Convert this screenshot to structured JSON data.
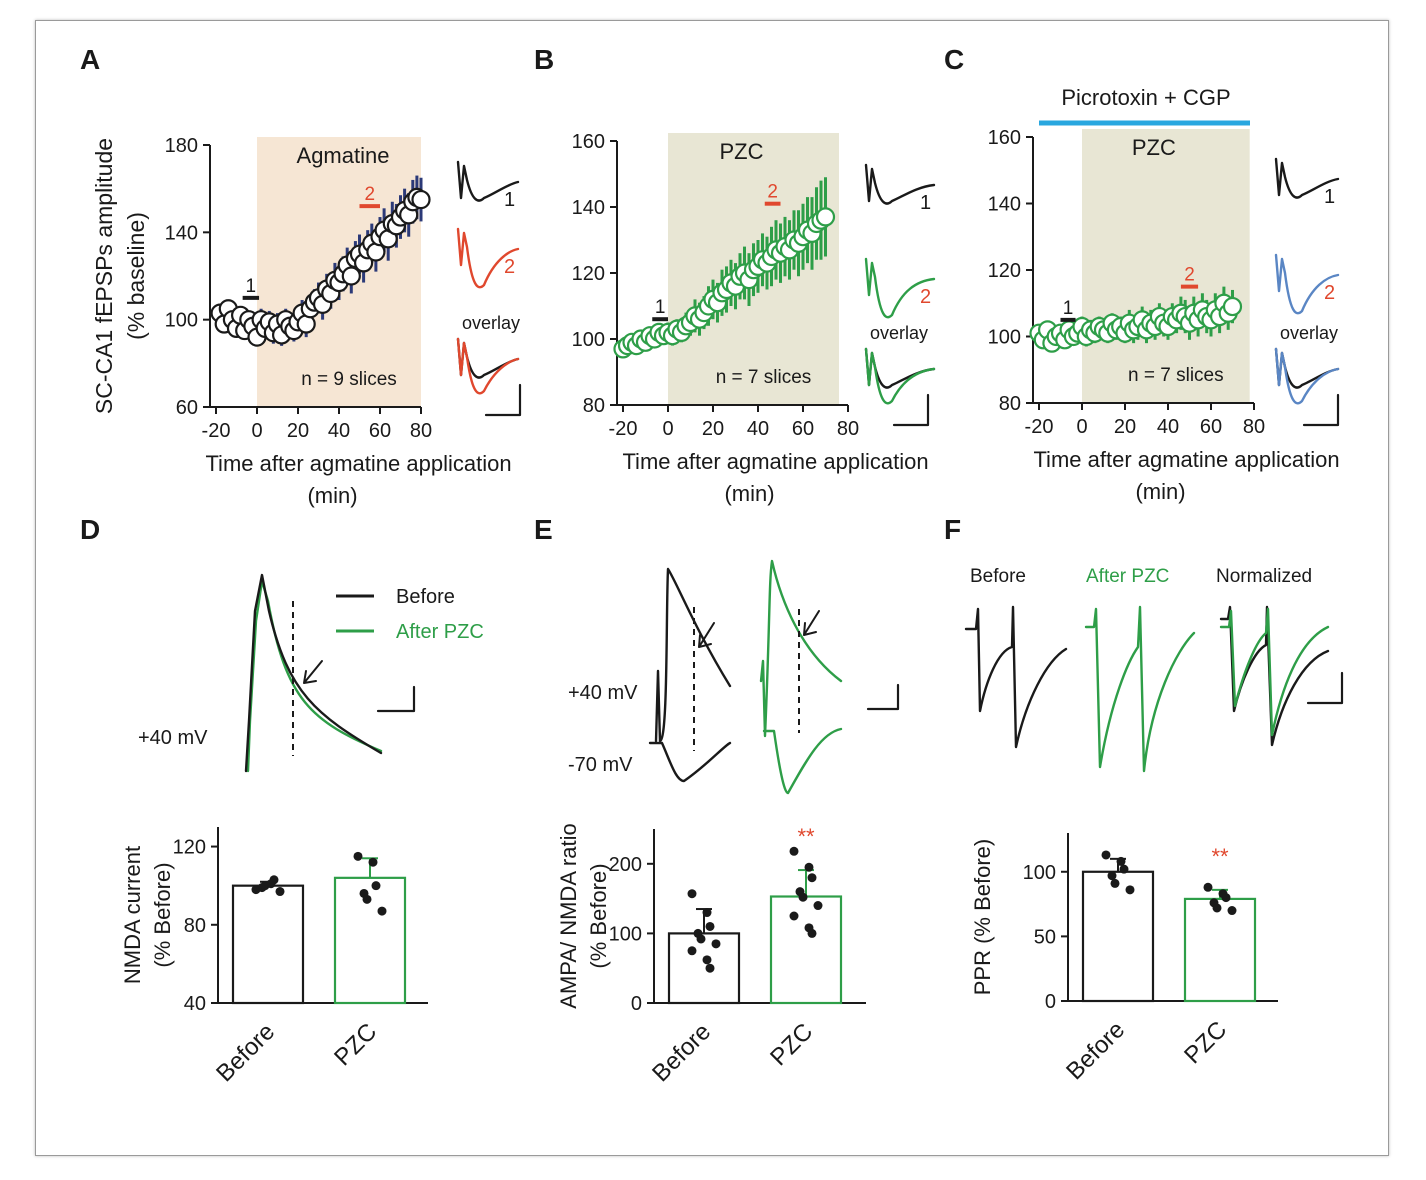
{
  "colors": {
    "black": "#1a1a1a",
    "red": "#e0482e",
    "green": "#2e9e48",
    "blue": "#5a86c4",
    "cyan_bar": "#29a7df",
    "navy": "#2c3a78",
    "shade_orange": "#f6e6d4",
    "shade_olive": "#e8e6d4",
    "star_red": "#e0482e"
  },
  "panels": {
    "A": {
      "letter": "A",
      "treatment": "Agmatine",
      "n_label": "n = 9 slices",
      "trace_labels": {
        "t1": "1",
        "t2": "2",
        "overlay": "overlay"
      },
      "marker1": "1",
      "marker2": "2"
    },
    "B": {
      "letter": "B",
      "treatment": "PZC",
      "n_label": "n = 7 slices",
      "trace_labels": {
        "t1": "1",
        "t2": "2",
        "overlay": "overlay"
      },
      "marker1": "1",
      "marker2": "2"
    },
    "C": {
      "letter": "C",
      "treatment": "PZC",
      "n_label": "n = 7 slices",
      "top_label": "Picrotoxin + CGP",
      "trace_labels": {
        "t1": "1",
        "t2": "2",
        "overlay": "overlay"
      },
      "marker1": "1",
      "marker2": "2"
    },
    "D": {
      "letter": "D",
      "legend": [
        "Before",
        "After PZC"
      ],
      "voltage": "+40 mV"
    },
    "E": {
      "letter": "E",
      "voltages": [
        "+40 mV",
        "-70 mV"
      ]
    },
    "F": {
      "letter": "F",
      "labels": [
        "Before",
        "After PZC",
        "Normalized"
      ]
    }
  },
  "chart_data": [
    {
      "id": "A",
      "type": "scatter",
      "ylabel": "SC-CA1 fEPSPs amplitude (% baseline)",
      "xlabel": "Time after agmatine application (min)",
      "xlim": [
        -20,
        80
      ],
      "ylim": [
        60,
        180
      ],
      "xticks": [
        -20,
        0,
        20,
        40,
        60,
        80
      ],
      "yticks": [
        60,
        100,
        140,
        180
      ],
      "shaded_interval": [
        0,
        80
      ],
      "time_markers": [
        {
          "label": "1",
          "x": [
            -7,
            1
          ],
          "y": 110
        },
        {
          "label": "2",
          "x": [
            50,
            60
          ],
          "y": 152
        }
      ],
      "series": [
        {
          "x": [
            -18,
            -16,
            -14,
            -12,
            -10,
            -8,
            -6,
            -4,
            -2,
            0,
            2,
            4,
            6,
            8,
            10,
            12,
            14,
            16,
            18,
            20,
            22,
            24,
            26,
            28,
            30,
            32,
            34,
            36,
            38,
            40,
            42,
            44,
            46,
            48,
            50,
            52,
            54,
            56,
            58,
            60,
            62,
            64,
            66,
            68,
            70,
            72,
            74,
            76,
            78,
            80
          ],
          "y": [
            103,
            98,
            105,
            100,
            96,
            102,
            95,
            100,
            97,
            92,
            100,
            96,
            99,
            94,
            98,
            93,
            100,
            97,
            95,
            99,
            103,
            98,
            105,
            108,
            110,
            107,
            114,
            112,
            118,
            117,
            121,
            125,
            120,
            128,
            130,
            126,
            132,
            135,
            131,
            138,
            141,
            137,
            144,
            143,
            147,
            150,
            148,
            154,
            156,
            155
          ],
          "yerr": [
            4,
            4,
            4,
            4,
            4,
            4,
            4,
            4,
            4,
            4,
            5,
            5,
            5,
            5,
            5,
            5,
            5,
            5,
            5,
            5,
            6,
            6,
            6,
            6,
            7,
            7,
            7,
            7,
            8,
            8,
            8,
            8,
            8,
            8,
            9,
            9,
            9,
            9,
            9,
            9,
            10,
            10,
            10,
            10,
            10,
            10,
            10,
            10,
            10,
            10
          ]
        }
      ]
    },
    {
      "id": "B",
      "type": "scatter",
      "xlabel": "Time after agmatine application (min)",
      "xlim": [
        -20,
        80
      ],
      "ylim": [
        80,
        160
      ],
      "xticks": [
        -20,
        0,
        20,
        40,
        60,
        80
      ],
      "yticks": [
        80,
        100,
        120,
        140,
        160
      ],
      "shaded_interval": [
        0,
        76
      ],
      "time_markers": [
        {
          "label": "1",
          "x": [
            -7,
            0
          ],
          "y": 106
        },
        {
          "label": "2",
          "x": [
            43,
            50
          ],
          "y": 141
        }
      ],
      "series": [
        {
          "x": [
            -20,
            -18,
            -16,
            -14,
            -12,
            -10,
            -8,
            -6,
            -4,
            -2,
            0,
            2,
            4,
            6,
            8,
            10,
            12,
            14,
            16,
            18,
            20,
            22,
            24,
            26,
            28,
            30,
            32,
            34,
            36,
            38,
            40,
            42,
            44,
            46,
            48,
            50,
            52,
            54,
            56,
            58,
            60,
            62,
            64,
            66,
            68,
            70
          ],
          "y": [
            97,
            98,
            99,
            98,
            100,
            99,
            101,
            100,
            102,
            101,
            102,
            101,
            103,
            102,
            104,
            105,
            107,
            106,
            108,
            110,
            112,
            111,
            114,
            115,
            117,
            116,
            119,
            120,
            118,
            121,
            122,
            124,
            123,
            125,
            127,
            126,
            128,
            127,
            130,
            129,
            131,
            133,
            132,
            135,
            136,
            137
          ],
          "yerr": [
            2,
            2,
            2,
            2,
            2,
            2,
            2,
            2,
            2,
            2,
            3,
            3,
            3,
            3,
            4,
            4,
            5,
            5,
            5,
            6,
            6,
            6,
            7,
            7,
            7,
            7,
            7,
            8,
            8,
            8,
            8,
            8,
            8,
            9,
            9,
            9,
            9,
            9,
            9,
            10,
            10,
            10,
            11,
            11,
            12,
            12
          ]
        }
      ]
    },
    {
      "id": "C",
      "type": "scatter",
      "xlabel": "Time after agmatine application (min)",
      "xlim": [
        -20,
        80
      ],
      "ylim": [
        80,
        160
      ],
      "xticks": [
        -20,
        0,
        20,
        40,
        60,
        80
      ],
      "yticks": [
        80,
        100,
        120,
        140,
        160
      ],
      "shaded_interval": [
        0,
        78
      ],
      "drug_bar_interval": [
        -18,
        78
      ],
      "time_markers": [
        {
          "label": "1",
          "x": [
            -10,
            -3
          ],
          "y": 105
        },
        {
          "label": "2",
          "x": [
            46,
            54
          ],
          "y": 115
        }
      ],
      "series": [
        {
          "x": [
            -20,
            -18,
            -16,
            -14,
            -12,
            -10,
            -8,
            -6,
            -4,
            -2,
            0,
            2,
            4,
            6,
            8,
            10,
            12,
            14,
            16,
            18,
            20,
            22,
            24,
            26,
            28,
            30,
            32,
            34,
            36,
            38,
            40,
            42,
            44,
            46,
            48,
            50,
            52,
            54,
            56,
            58,
            60,
            62,
            64,
            66,
            68,
            70
          ],
          "y": [
            101,
            99,
            102,
            98,
            100,
            101,
            99,
            102,
            100,
            101,
            103,
            100,
            102,
            101,
            103,
            102,
            101,
            104,
            102,
            103,
            101,
            104,
            102,
            103,
            105,
            102,
            104,
            103,
            106,
            104,
            103,
            106,
            105,
            107,
            106,
            104,
            107,
            105,
            108,
            106,
            105,
            108,
            106,
            110,
            107,
            109
          ],
          "yerr": [
            2,
            2,
            2,
            2,
            2,
            2,
            2,
            2,
            2,
            2,
            3,
            3,
            3,
            3,
            3,
            3,
            3,
            3,
            3,
            3,
            3,
            4,
            4,
            4,
            4,
            4,
            4,
            4,
            4,
            4,
            4,
            4,
            4,
            5,
            5,
            5,
            5,
            5,
            5,
            5,
            5,
            5,
            5,
            5,
            5,
            5
          ]
        }
      ]
    },
    {
      "id": "D",
      "type": "bar",
      "ylabel": "NMDA current (% Before)",
      "categories": [
        "Before",
        "PZC"
      ],
      "ylim": [
        40,
        130
      ],
      "yticks": [
        40,
        80,
        120
      ],
      "values": [
        100,
        104
      ],
      "errors": [
        2,
        10
      ],
      "points": [
        [
          98,
          101,
          103,
          99,
          100,
          97
        ],
        [
          115,
          112,
          100,
          96,
          93,
          87
        ]
      ]
    },
    {
      "id": "E",
      "type": "bar",
      "ylabel": "AMPA/ NMDA ratio (% Before)",
      "categories": [
        "Before",
        "PZC"
      ],
      "ylim": [
        0,
        250
      ],
      "yticks": [
        0,
        100,
        200
      ],
      "values": [
        100,
        153
      ],
      "errors": [
        35,
        38
      ],
      "significance": "**",
      "points": [
        [
          157,
          130,
          110,
          100,
          92,
          85,
          75,
          62,
          50
        ],
        [
          218,
          195,
          180,
          160,
          152,
          140,
          125,
          108,
          100
        ]
      ]
    },
    {
      "id": "F",
      "type": "bar",
      "ylabel": "PPR (% Before)",
      "categories": [
        "Before",
        "PZC"
      ],
      "ylim": [
        0,
        130
      ],
      "yticks": [
        0,
        50,
        100
      ],
      "values": [
        100,
        79
      ],
      "errors": [
        10,
        7
      ],
      "significance": "**",
      "points": [
        [
          113,
          108,
          102,
          97,
          91,
          86
        ],
        [
          88,
          83,
          80,
          76,
          72,
          70
        ]
      ]
    }
  ]
}
